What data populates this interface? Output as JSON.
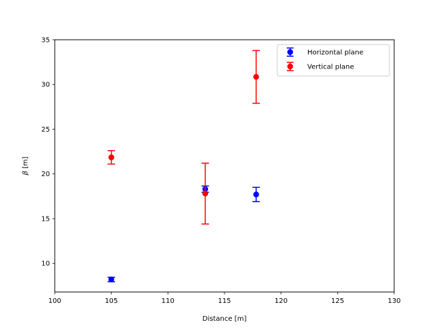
{
  "chart_data": {
    "type": "scatter",
    "title": "",
    "xlabel": "Distance [m]",
    "ylabel_symbol": "β",
    "ylabel_unit": " [m]",
    "xlim": [
      100,
      130
    ],
    "ylim": [
      6.8,
      35
    ],
    "xticks": [
      100,
      105,
      110,
      115,
      120,
      125,
      130
    ],
    "yticks": [
      10,
      15,
      20,
      25,
      30,
      35
    ],
    "grid": false,
    "legend_position": "top-right",
    "series": [
      {
        "name": "Horizontal plane",
        "color": "#0000ff",
        "points": [
          {
            "x": 105.0,
            "y": 8.2,
            "yerr": 0.25
          },
          {
            "x": 113.3,
            "y": 18.3,
            "yerr": 0.35
          },
          {
            "x": 117.8,
            "y": 17.7,
            "yerr": 0.8
          }
        ]
      },
      {
        "name": "Vertical plane",
        "color": "#ff0000",
        "points": [
          {
            "x": 105.0,
            "y": 21.85,
            "yerr": 0.75
          },
          {
            "x": 113.3,
            "y": 17.8,
            "yerr": 3.4
          },
          {
            "x": 117.8,
            "y": 30.85,
            "yerr": 2.95
          }
        ]
      }
    ]
  }
}
